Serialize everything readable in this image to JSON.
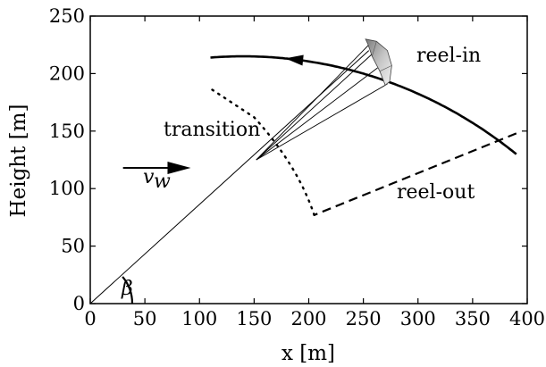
{
  "chart_data": {
    "type": "diagram",
    "xlabel": "x [m]",
    "ylabel": "Height [m]",
    "xlim": [
      0,
      400
    ],
    "ylim": [
      0,
      250
    ],
    "xticks": [
      0,
      50,
      100,
      150,
      200,
      250,
      300,
      350,
      400
    ],
    "yticks": [
      0,
      50,
      100,
      150,
      200,
      250
    ],
    "reel_out_path": [
      [
        390,
        148
      ],
      [
        205,
        77
      ]
    ],
    "transition_path": [
      [
        205,
        77
      ],
      [
        190,
        120
      ],
      [
        150,
        162
      ],
      [
        110,
        187
      ]
    ],
    "reel_in_arc": {
      "center": [
        140,
        -195
      ],
      "radius": 410,
      "from_x": 110,
      "to_x": 390,
      "arrow_at_x": 185
    },
    "tether": {
      "from": [
        0,
        0
      ],
      "to": [
        255,
        220
      ]
    },
    "bridle_fan": {
      "from": [
        152,
        125
      ],
      "to": [
        [
          256,
          226
        ],
        [
          258,
          217
        ],
        [
          263,
          205
        ],
        [
          272,
          191
        ]
      ]
    },
    "kite": {
      "leading_edge": [
        [
          252,
          230
        ],
        [
          262,
          228
        ],
        [
          272,
          220
        ],
        [
          276,
          207
        ],
        [
          274,
          193
        ]
      ],
      "trailing_edge": [
        [
          254,
          226
        ],
        [
          258,
          215
        ],
        [
          265,
          202
        ],
        [
          270,
          190
        ]
      ]
    },
    "wind_arrow": {
      "from": [
        30,
        118
      ],
      "to": [
        92,
        118
      ]
    },
    "beta_arc": {
      "radius": 47,
      "start_deg": 0,
      "end_deg": 39.7
    },
    "annotations": {
      "reel_in": "reel-in",
      "reel_out": "reel-out",
      "transition": "transition",
      "wind_symbol": "v",
      "wind_subscript": "w",
      "angle_symbol": "β"
    }
  }
}
